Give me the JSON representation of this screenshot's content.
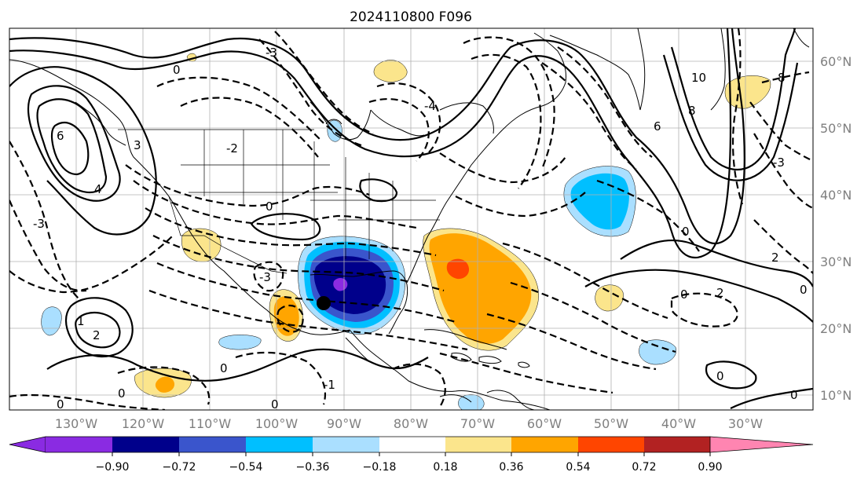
{
  "title": "2024110800 F096",
  "map": {
    "lon_labels": [
      "130°W",
      "120°W",
      "110°W",
      "100°W",
      "90°W",
      "80°W",
      "70°W",
      "60°W",
      "50°W",
      "40°W",
      "30°W"
    ],
    "lat_labels": [
      "60°N",
      "50°N",
      "40°N",
      "30°N",
      "20°N",
      "10°N"
    ],
    "contour_labels": [
      "0",
      "1",
      "2",
      "3",
      "4",
      "6",
      "8",
      "10",
      "-1",
      "-2",
      "-3",
      "-4"
    ]
  },
  "colorbar": {
    "ticks": [
      "−0.90",
      "−0.72",
      "−0.54",
      "−0.36",
      "−0.18",
      "0.18",
      "0.36",
      "0.54",
      "0.72",
      "0.90"
    ],
    "colors": [
      "#8a2be2",
      "#00008b",
      "#3a55cc",
      "#00bfff",
      "#aadfff",
      "#ffffff",
      "#fbe58c",
      "#ffa500",
      "#ff4500",
      "#b22222",
      "#ff85b1"
    ]
  },
  "colors": {
    "neg_strong": "#8a2be2",
    "neg_deep": "#00008b",
    "neg_mid": "#3a55cc",
    "neg_light": "#00bfff",
    "neg_pale": "#aadfff",
    "pos_pale": "#fbe58c",
    "pos_light": "#ffa500",
    "pos_mid": "#ff4500"
  }
}
